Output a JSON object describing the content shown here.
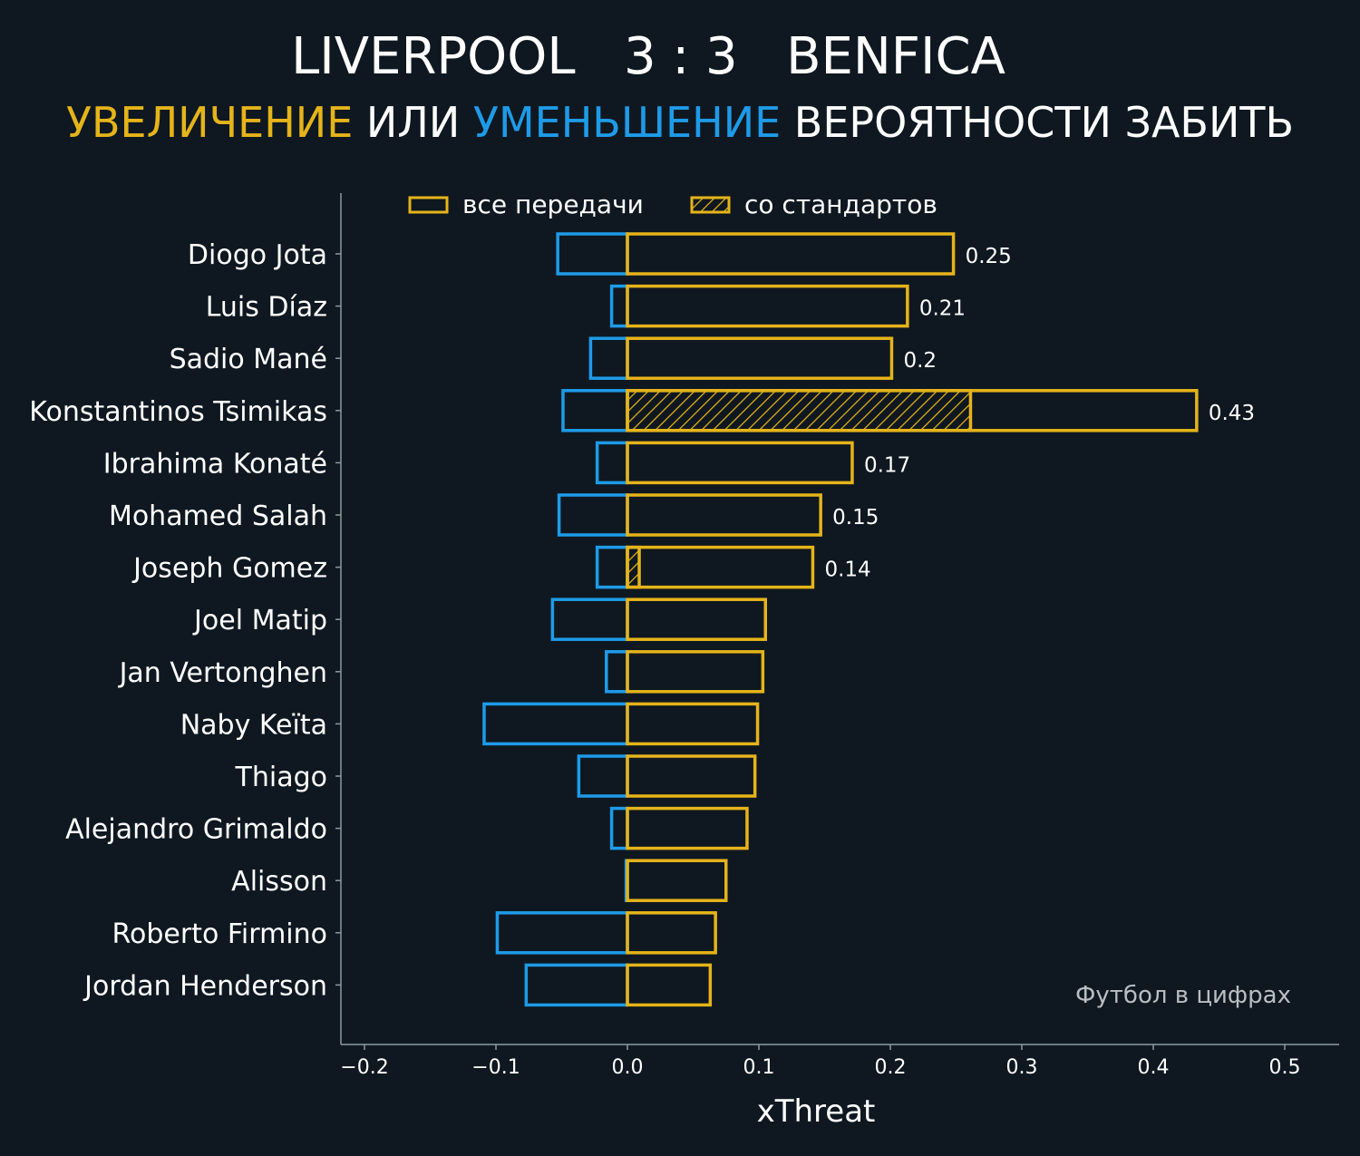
{
  "header": {
    "home": "LIVERPOOL",
    "score": "3 : 3",
    "away": "BENFICA",
    "sub_increase": "УВЕЛИЧЕНИЕ",
    "sub_or": " ИЛИ ",
    "sub_decrease": "УМЕНЬШЕНИЕ",
    "sub_rest": " ВЕРОЯТНОСТИ ЗАБИТЬ"
  },
  "watermark": "Футбол в цифрах",
  "colors": {
    "background": "#0f1820",
    "increase": "#e5b41a",
    "decrease": "#1e9be8",
    "axis": "#8a9aa0"
  },
  "chart_data": {
    "type": "bar",
    "orientation": "horizontal",
    "xlabel": "xThreat",
    "xlim": [
      -0.22,
      0.54
    ],
    "xticks": [
      -0.2,
      -0.1,
      0.0,
      0.1,
      0.2,
      0.3,
      0.4,
      0.5
    ],
    "xtick_labels": [
      "−0.2",
      "−0.1",
      "0.0",
      "0.1",
      "0.2",
      "0.3",
      "0.4",
      "0.5"
    ],
    "legend": {
      "placement": "top",
      "entries": [
        "все передачи",
        "со стандартов"
      ]
    },
    "categories": [
      "Diogo Jota",
      "Luis Díaz",
      "Sadio Mané",
      "Konstantinos Tsimikas",
      "Ibrahima Konaté",
      "Mohamed Salah",
      "Joseph Gomez",
      "Joel Matip",
      "Jan Vertonghen",
      "Naby Keïta",
      "Thiago",
      "Alejandro Grimaldo",
      "Alisson",
      "Roberto Firmino",
      "Jordan Henderson"
    ],
    "series": [
      {
        "name": "все передачи (увеличение)",
        "values": [
          0.248,
          0.213,
          0.201,
          0.433,
          0.171,
          0.147,
          0.141,
          0.105,
          0.103,
          0.099,
          0.097,
          0.091,
          0.075,
          0.067,
          0.063
        ]
      },
      {
        "name": "все передачи (уменьшение)",
        "values": [
          -0.053,
          -0.012,
          -0.028,
          -0.049,
          -0.023,
          -0.052,
          -0.023,
          -0.057,
          -0.016,
          -0.109,
          -0.037,
          -0.012,
          -0.001,
          -0.099,
          -0.077
        ]
      },
      {
        "name": "со стандартов",
        "values": [
          0,
          0,
          0,
          0.261,
          0,
          0,
          0.009,
          0,
          0,
          0,
          0,
          0,
          0,
          0,
          0
        ]
      }
    ],
    "data_labels": [
      "0.25",
      "0.21",
      "0.2",
      "0.43",
      "0.17",
      "0.15",
      "0.14",
      "",
      "",
      "",
      "",
      "",
      "",
      "",
      ""
    ]
  }
}
